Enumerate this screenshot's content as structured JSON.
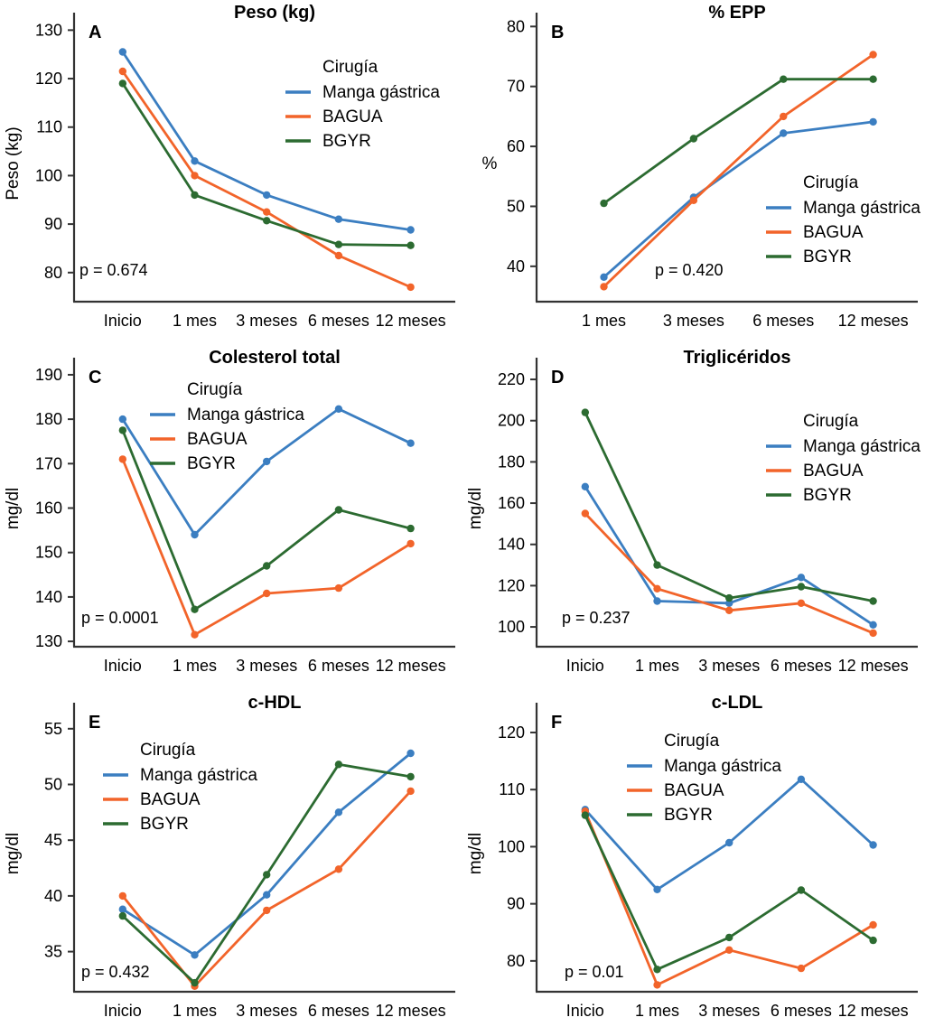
{
  "figure": {
    "legend_title": "Cirugía",
    "series_meta": [
      {
        "name": "Manga gástrica",
        "color": "#3b7ec1"
      },
      {
        "name": "BAGUA",
        "color": "#f2642a"
      },
      {
        "name": "BGYR",
        "color": "#2c6b31"
      }
    ],
    "axis_color": "#333333",
    "text_color": "#000000"
  },
  "chart_data": [
    {
      "type": "line",
      "panel_letter": "A",
      "title": "Peso (kg)",
      "ylabel": "Peso (kg)",
      "ylabel_rotated": true,
      "p_label": "p = 0.674",
      "categories": [
        "Inicio",
        "1 mes",
        "3 meses",
        "6 meses",
        "12 meses"
      ],
      "yticks": [
        80,
        90,
        100,
        110,
        120,
        130
      ],
      "ylim": [
        74,
        131
      ],
      "series": [
        {
          "name": "Manga gástrica",
          "values": [
            125.5,
            103,
            96,
            91,
            88.8
          ]
        },
        {
          "name": "BAGUA",
          "values": [
            121.5,
            100,
            92.5,
            83.5,
            77
          ]
        },
        {
          "name": "BGYR",
          "values": [
            119,
            96,
            90.7,
            85.8,
            85.6
          ]
        }
      ],
      "legend_pos": {
        "x": 357,
        "y": 80
      },
      "p_pos": {
        "x": 88,
        "y": 305
      }
    },
    {
      "type": "line",
      "panel_letter": "B",
      "title": "% EPP",
      "ylabel": "%",
      "ylabel_rotated": false,
      "p_label": "p = 0.420",
      "categories": [
        "1 mes",
        "3 meses",
        "6 meses",
        "12 meses"
      ],
      "yticks": [
        40,
        50,
        60,
        70,
        80
      ],
      "ylim": [
        34.1,
        80.2
      ],
      "series": [
        {
          "name": "Manga gástrica",
          "values": [
            38.2,
            51.5,
            62.2,
            64.1
          ]
        },
        {
          "name": "BAGUA",
          "values": [
            36.6,
            51,
            65,
            75.3
          ]
        },
        {
          "name": "BGYR",
          "values": [
            50.5,
            61.3,
            71.2,
            71.2
          ]
        }
      ],
      "legend_pos": {
        "x": 377,
        "y": 208
      },
      "p_pos": {
        "x": 213,
        "y": 305
      }
    },
    {
      "type": "line",
      "panel_letter": "C",
      "title": "Colesterol total",
      "ylabel": "mg/dl",
      "ylabel_rotated": true,
      "p_label": "p = 0.0001",
      "categories": [
        "Inicio",
        "1 mes",
        "3 meses",
        "6 meses",
        "12 meses"
      ],
      "yticks": [
        130,
        140,
        150,
        160,
        170,
        180,
        190
      ],
      "ylim": [
        128.8,
        191
      ],
      "series": [
        {
          "name": "Manga gástrica",
          "values": [
            180,
            154,
            170.5,
            182.3,
            174.6
          ]
        },
        {
          "name": "BAGUA",
          "values": [
            171,
            131.5,
            140.8,
            142,
            152
          ]
        },
        {
          "name": "BGYR",
          "values": [
            177.5,
            137.2,
            147,
            159.6,
            155.4
          ]
        }
      ],
      "legend_pos": {
        "x": 207,
        "y": 55
      },
      "p_pos": {
        "x": 90,
        "y": 308
      }
    },
    {
      "type": "line",
      "panel_letter": "D",
      "title": "Triglicéridos",
      "ylabel": "mg/dl",
      "ylabel_rotated": true,
      "p_label": "p = 0.237",
      "categories": [
        "Inicio",
        "1 mes",
        "3 meses",
        "6 meses",
        "12 meses"
      ],
      "yticks": [
        100,
        120,
        140,
        160,
        180,
        200,
        220
      ],
      "ylim": [
        90.4,
        224.4
      ],
      "series": [
        {
          "name": "Manga gástrica",
          "values": [
            168,
            112.5,
            111.5,
            124,
            101
          ]
        },
        {
          "name": "BAGUA",
          "values": [
            155,
            118.5,
            108,
            111.5,
            97
          ]
        },
        {
          "name": "BGYR",
          "values": [
            204,
            130,
            114,
            119.5,
            112.5
          ]
        }
      ],
      "legend_pos": {
        "x": 377,
        "y": 90
      },
      "p_pos": {
        "x": 110,
        "y": 308
      }
    },
    {
      "type": "line",
      "panel_letter": "E",
      "title": "c-HDL",
      "ylabel": "mg/dl",
      "ylabel_rotated": true,
      "p_label": "p = 0.432",
      "categories": [
        "Inicio",
        "1 mes",
        "3 meses",
        "6 meses",
        "12 meses"
      ],
      "yticks": [
        35,
        40,
        45,
        50,
        55
      ],
      "ylim": [
        31.4,
        56.2
      ],
      "series": [
        {
          "name": "Manga gástrica",
          "values": [
            38.8,
            34.7,
            40.1,
            47.5,
            52.8
          ]
        },
        {
          "name": "BAGUA",
          "values": [
            40.0,
            31.9,
            38.7,
            42.4,
            49.4
          ]
        },
        {
          "name": "BGYR",
          "values": [
            38.2,
            32.2,
            41.9,
            51.8,
            50.7
          ]
        }
      ],
      "legend_pos": {
        "x": 155,
        "y": 72
      },
      "p_pos": {
        "x": 90,
        "y": 318
      }
    },
    {
      "type": "line",
      "panel_letter": "F",
      "title": "c-LDL",
      "ylabel": "mg/dl",
      "ylabel_rotated": true,
      "p_label": "p = 0.01",
      "categories": [
        "Inicio",
        "1 mes",
        "3 meses",
        "6 meses",
        "12 meses"
      ],
      "yticks": [
        80,
        90,
        100,
        110,
        120
      ],
      "ylim": [
        74.6,
        123
      ],
      "series": [
        {
          "name": "Manga gástrica",
          "values": [
            106.5,
            92.5,
            100.7,
            111.8,
            100.3
          ]
        },
        {
          "name": "BAGUA",
          "values": [
            106.2,
            75.8,
            81.9,
            78.7,
            86.3
          ]
        },
        {
          "name": "BGYR",
          "values": [
            105.5,
            78.5,
            84.1,
            92.4,
            83.6
          ]
        }
      ],
      "legend_pos": {
        "x": 223,
        "y": 62
      },
      "p_pos": {
        "x": 113,
        "y": 318
      }
    }
  ]
}
